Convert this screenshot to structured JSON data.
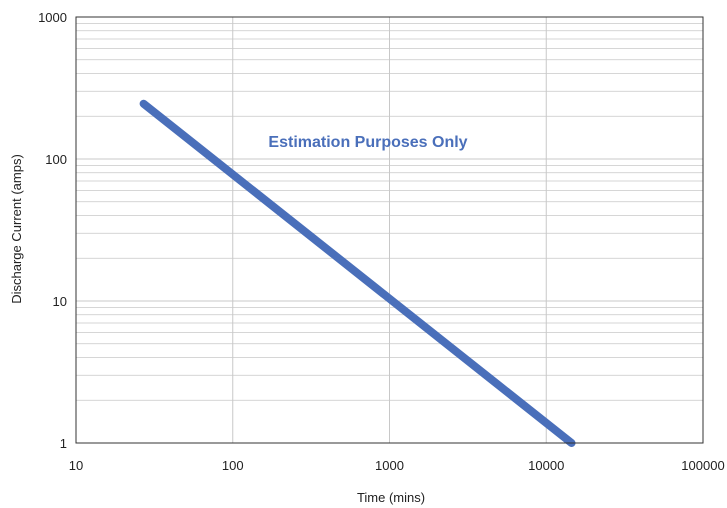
{
  "chart_data": {
    "type": "line",
    "title": "",
    "xlabel": "Time (mins)",
    "ylabel": "Discharge Current (amps)",
    "x_scale": "log",
    "y_scale": "log",
    "xlim": [
      10,
      100000
    ],
    "ylim": [
      1,
      1000
    ],
    "x_tick_labels": [
      "10",
      "100",
      "1000",
      "10000",
      "100000"
    ],
    "y_tick_labels": [
      "1",
      "10",
      "100",
      "1000"
    ],
    "grid": true,
    "legend": "none",
    "annotation": "Estimation Purposes Only",
    "series": [
      {
        "x": [
          27,
          14500
        ],
        "y": [
          245,
          1
        ],
        "color": "#4a6fba"
      }
    ],
    "colors": {
      "line": "#4a6fba",
      "annotation": "#4a6fba",
      "grid": "#c8c8c8",
      "frame": "#333333"
    }
  }
}
